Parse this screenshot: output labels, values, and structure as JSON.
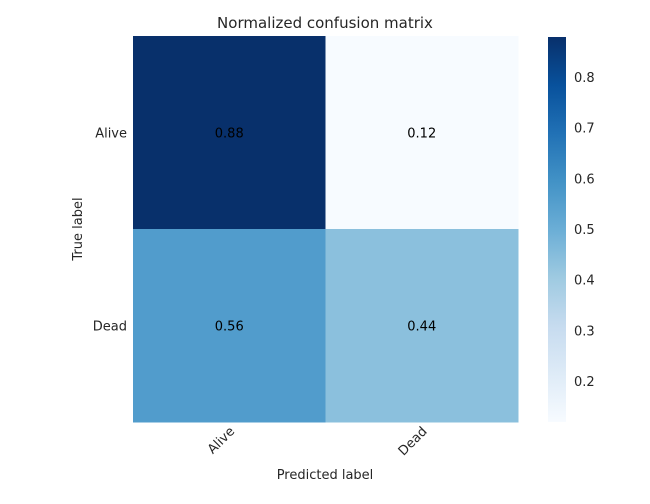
{
  "chart_data": {
    "type": "heatmap",
    "title": "Normalized confusion matrix",
    "xlabel": "Predicted label",
    "ylabel": "True label",
    "x_categories": [
      "Alive",
      "Dead"
    ],
    "y_categories": [
      "Alive",
      "Dead"
    ],
    "values": [
      [
        0.88,
        0.12
      ],
      [
        0.56,
        0.44
      ]
    ],
    "cell_labels": [
      [
        "0.88",
        "0.12"
      ],
      [
        "0.56",
        "0.44"
      ]
    ],
    "colormap": "Blues",
    "colorbar": {
      "range": [
        0.12,
        0.88
      ],
      "ticks": [
        0.2,
        0.3,
        0.4,
        0.5,
        0.6,
        0.7,
        0.8
      ],
      "tick_labels": [
        "0.2",
        "0.3",
        "0.4",
        "0.5",
        "0.6",
        "0.7",
        "0.8"
      ]
    },
    "grid": false
  },
  "colors": {
    "cell_text": "#000000",
    "axis_text": "#262626"
  }
}
